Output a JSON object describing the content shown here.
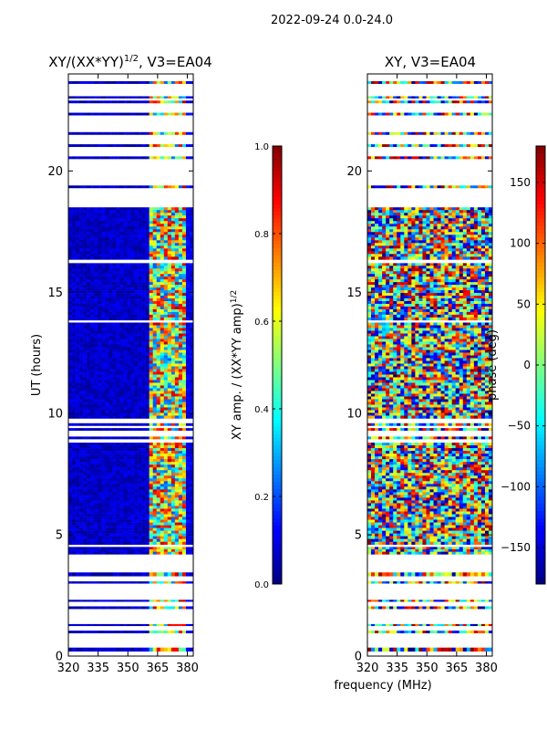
{
  "figure": {
    "suptitle": "2022-09-24 0.0-24.0"
  },
  "chart_data": [
    {
      "type": "heatmap",
      "title": "XY/(XX*YY)",
      "title_exponent": "1/2",
      "title_suffix": ", V3=EA04",
      "xlabel": "",
      "ylabel": "UT (hours)",
      "xlim": [
        320,
        383
      ],
      "ylim": [
        0,
        24
      ],
      "x_ticks": [
        320,
        335,
        350,
        365,
        380
      ],
      "y_ticks": [
        0,
        5,
        10,
        15,
        20
      ],
      "colormap": "jet",
      "colorbar": {
        "label": "XY amp. / (XX*YY amp)",
        "label_exponent": "1/2",
        "range": [
          0.0,
          1.0
        ],
        "ticks": [
          "0.0",
          "0.2",
          "0.4",
          "0.6",
          "0.8",
          "1.0"
        ],
        "tick_values": [
          0.0,
          0.2,
          0.4,
          0.6,
          0.8,
          1.0
        ]
      },
      "data_rows_ut_hours": [
        {
          "start": 0.2,
          "end": 0.35
        },
        {
          "start": 0.95,
          "end": 1.05
        },
        {
          "start": 1.25,
          "end": 1.32
        },
        {
          "start": 1.95,
          "end": 2.05
        },
        {
          "start": 2.25,
          "end": 2.32
        },
        {
          "start": 3.0,
          "end": 3.08
        },
        {
          "start": 3.3,
          "end": 3.45
        },
        {
          "start": 4.2,
          "end": 4.5
        },
        {
          "start": 4.6,
          "end": 8.8
        },
        {
          "start": 8.95,
          "end": 9.05
        },
        {
          "start": 9.3,
          "end": 9.4
        },
        {
          "start": 9.5,
          "end": 9.6
        },
        {
          "start": 9.8,
          "end": 13.75
        },
        {
          "start": 13.85,
          "end": 16.2
        },
        {
          "start": 16.35,
          "end": 18.5
        },
        {
          "start": 19.3,
          "end": 19.4
        },
        {
          "start": 20.5,
          "end": 20.6
        },
        {
          "start": 21.0,
          "end": 21.1
        },
        {
          "start": 21.5,
          "end": 21.6
        },
        {
          "start": 22.3,
          "end": 22.4
        },
        {
          "start": 22.8,
          "end": 22.9
        },
        {
          "start": 23.0,
          "end": 23.08
        },
        {
          "start": 23.6,
          "end": 23.7
        }
      ],
      "regions": [
        {
          "f_start": 320,
          "f_end": 360,
          "value_range": [
            0.0,
            0.12
          ],
          "note": "mostly dark blue"
        },
        {
          "f_start": 361,
          "f_end": 380,
          "value_range": [
            0.2,
            0.95
          ],
          "note": "speckled cyan/yellow/red"
        }
      ]
    },
    {
      "type": "heatmap",
      "title": "XY, V3=EA04",
      "xlabel": "frequency (MHz)",
      "ylabel": "",
      "xlim": [
        320,
        383
      ],
      "ylim": [
        0,
        24
      ],
      "x_ticks": [
        320,
        335,
        350,
        365,
        380
      ],
      "y_ticks": [
        0,
        5,
        10,
        15,
        20
      ],
      "colormap": "jet",
      "colorbar": {
        "label": "phase (deg)",
        "range": [
          -180,
          180
        ],
        "ticks": [
          "150",
          "100",
          "50",
          "0",
          "−50",
          "−100",
          "−150"
        ],
        "tick_values": [
          150,
          100,
          50,
          0,
          -50,
          -100,
          -150
        ]
      },
      "data_rows_ut_hours": [
        {
          "start": 0.2,
          "end": 0.35
        },
        {
          "start": 0.95,
          "end": 1.05
        },
        {
          "start": 1.25,
          "end": 1.32
        },
        {
          "start": 1.95,
          "end": 2.05
        },
        {
          "start": 2.25,
          "end": 2.32
        },
        {
          "start": 3.0,
          "end": 3.08
        },
        {
          "start": 3.3,
          "end": 3.45
        },
        {
          "start": 4.2,
          "end": 4.5
        },
        {
          "start": 4.6,
          "end": 8.8
        },
        {
          "start": 8.95,
          "end": 9.05
        },
        {
          "start": 9.3,
          "end": 9.4
        },
        {
          "start": 9.5,
          "end": 9.6
        },
        {
          "start": 9.8,
          "end": 13.75
        },
        {
          "start": 13.85,
          "end": 16.2
        },
        {
          "start": 16.35,
          "end": 18.5
        },
        {
          "start": 19.3,
          "end": 19.4
        },
        {
          "start": 20.5,
          "end": 20.6
        },
        {
          "start": 21.0,
          "end": 21.1
        },
        {
          "start": 21.5,
          "end": 21.6
        },
        {
          "start": 22.3,
          "end": 22.4
        },
        {
          "start": 22.8,
          "end": 22.9
        },
        {
          "start": 23.0,
          "end": 23.08
        },
        {
          "start": 23.6,
          "end": 23.7
        }
      ],
      "regions": [
        {
          "f_start": 320,
          "f_end": 383,
          "value_range": [
            -180,
            180
          ],
          "note": "full-range phase noise"
        }
      ]
    }
  ]
}
